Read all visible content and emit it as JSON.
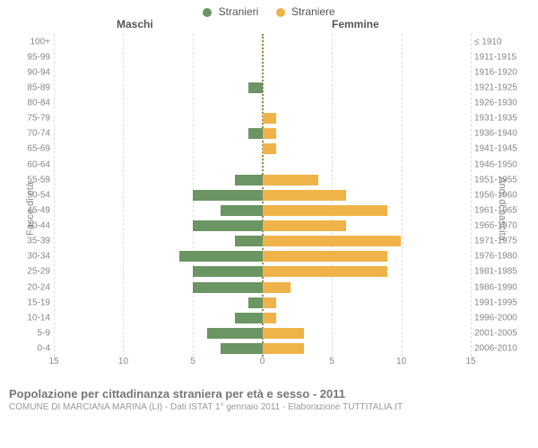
{
  "chart": {
    "type": "population-pyramid",
    "legend": [
      {
        "label": "Stranieri",
        "color": "#6b9562"
      },
      {
        "label": "Straniere",
        "color": "#f0b34a"
      }
    ],
    "header_male": "Maschi",
    "header_female": "Femmine",
    "y_left_title": "Fasce di età",
    "y_right_title": "Anni di nascita",
    "x_max": 15,
    "x_ticks": [
      15,
      10,
      5,
      0,
      5,
      10,
      15
    ],
    "centerline_color": "#998844",
    "gridline_color": "#ddd",
    "background_color": "#ffffff",
    "male_color": "#6b9562",
    "female_color": "#f0b34a",
    "label_fontsize": 10,
    "label_color": "#888",
    "rows": [
      {
        "age": "100+",
        "birth": "≤ 1910",
        "m": 0,
        "f": 0
      },
      {
        "age": "95-99",
        "birth": "1911-1915",
        "m": 0,
        "f": 0
      },
      {
        "age": "90-94",
        "birth": "1916-1920",
        "m": 0,
        "f": 0
      },
      {
        "age": "85-89",
        "birth": "1921-1925",
        "m": 1,
        "f": 0
      },
      {
        "age": "80-84",
        "birth": "1926-1930",
        "m": 0,
        "f": 0
      },
      {
        "age": "75-79",
        "birth": "1931-1935",
        "m": 0,
        "f": 1
      },
      {
        "age": "70-74",
        "birth": "1936-1940",
        "m": 1,
        "f": 1
      },
      {
        "age": "65-69",
        "birth": "1941-1945",
        "m": 0,
        "f": 1
      },
      {
        "age": "60-64",
        "birth": "1946-1950",
        "m": 0,
        "f": 0
      },
      {
        "age": "55-59",
        "birth": "1951-1955",
        "m": 2,
        "f": 4
      },
      {
        "age": "50-54",
        "birth": "1956-1960",
        "m": 5,
        "f": 6
      },
      {
        "age": "45-49",
        "birth": "1961-1965",
        "m": 3,
        "f": 9
      },
      {
        "age": "40-44",
        "birth": "1966-1970",
        "m": 5,
        "f": 6
      },
      {
        "age": "35-39",
        "birth": "1971-1975",
        "m": 2,
        "f": 10
      },
      {
        "age": "30-34",
        "birth": "1976-1980",
        "m": 6,
        "f": 9
      },
      {
        "age": "25-29",
        "birth": "1981-1985",
        "m": 5,
        "f": 9
      },
      {
        "age": "20-24",
        "birth": "1986-1990",
        "m": 5,
        "f": 2
      },
      {
        "age": "15-19",
        "birth": "1991-1995",
        "m": 1,
        "f": 1
      },
      {
        "age": "10-14",
        "birth": "1996-2000",
        "m": 2,
        "f": 1
      },
      {
        "age": "5-9",
        "birth": "2001-2005",
        "m": 4,
        "f": 3
      },
      {
        "age": "0-4",
        "birth": "2006-2010",
        "m": 3,
        "f": 3
      }
    ]
  },
  "title": "Popolazione per cittadinanza straniera per età e sesso - 2011",
  "subtitle": "COMUNE DI MARCIANA MARINA (LI) - Dati ISTAT 1° gennaio 2011 - Elaborazione TUTTITALIA.IT"
}
